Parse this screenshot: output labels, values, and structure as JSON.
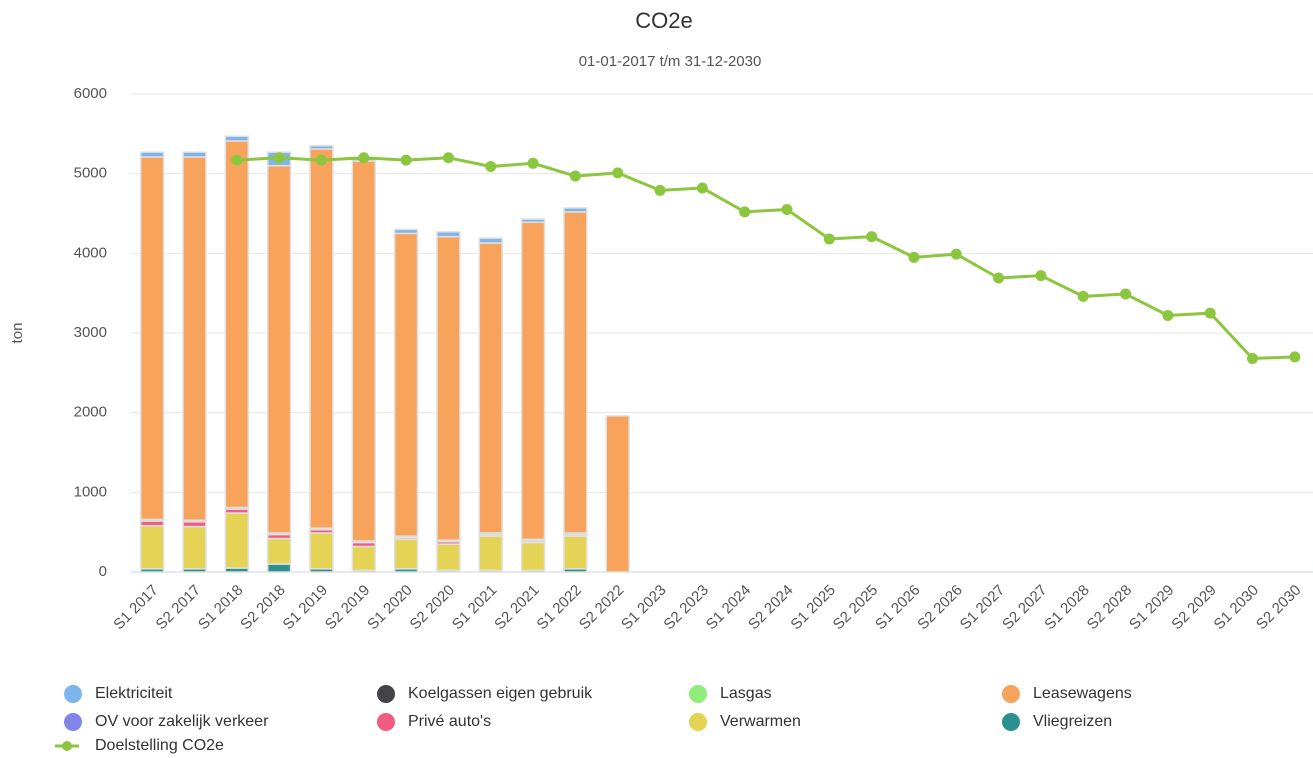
{
  "chart_data": {
    "type": "bar",
    "title": "CO2e",
    "subtitle": "01-01-2017 t/m 31-12-2030",
    "y_label": "ton",
    "categories": [
      "S1 2017",
      "S2 2017",
      "S1 2018",
      "S2 2018",
      "S1 2019",
      "S2 2019",
      "S1 2020",
      "S2 2020",
      "S1 2021",
      "S2 2021",
      "S1 2022",
      "S2 2022",
      "S1 2023",
      "S2 2023",
      "S1 2024",
      "S2 2024",
      "S1 2025",
      "S2 2025",
      "S1 2026",
      "S2 2026",
      "S1 2027",
      "S2 2027",
      "S1 2028",
      "S2 2028",
      "S1 2029",
      "S2 2029",
      "S1 2030",
      "S2 2030"
    ],
    "stacked": true,
    "series": [
      {
        "name": "Elektriciteit",
        "color": "#7cb5ec",
        "values": [
          60,
          60,
          60,
          170,
          40,
          40,
          50,
          60,
          60,
          40,
          50,
          0,
          null,
          null,
          null,
          null,
          null,
          null,
          null,
          null,
          null,
          null,
          null,
          null,
          null,
          null,
          null,
          null
        ]
      },
      {
        "name": "Koelgassen eigen gebruik",
        "color": "#434348",
        "values": [
          0,
          0,
          0,
          0,
          0,
          0,
          0,
          0,
          0,
          0,
          0,
          0,
          null,
          null,
          null,
          null,
          null,
          null,
          null,
          null,
          null,
          null,
          null,
          null,
          null,
          null,
          null,
          null
        ]
      },
      {
        "name": "Lasgas",
        "color": "#90ed7d",
        "values": [
          0,
          0,
          0,
          0,
          0,
          0,
          0,
          0,
          0,
          0,
          0,
          0,
          null,
          null,
          null,
          null,
          null,
          null,
          null,
          null,
          null,
          null,
          null,
          null,
          null,
          null,
          null,
          null
        ]
      },
      {
        "name": "Leasewagens",
        "color": "#f7a35c",
        "values": [
          4550,
          4560,
          4600,
          4610,
          4760,
          4770,
          3800,
          3810,
          3640,
          3980,
          4030,
          1960,
          null,
          null,
          null,
          null,
          null,
          null,
          null,
          null,
          null,
          null,
          null,
          null,
          null,
          null,
          null,
          null
        ]
      },
      {
        "name": "OV voor zakelijk verkeer",
        "color": "#8085e9",
        "values": [
          20,
          20,
          20,
          20,
          20,
          20,
          20,
          20,
          20,
          20,
          20,
          0,
          null,
          null,
          null,
          null,
          null,
          null,
          null,
          null,
          null,
          null,
          null,
          null,
          null,
          null,
          null,
          null
        ]
      },
      {
        "name": "Privé auto's",
        "color": "#f15c80",
        "values": [
          60,
          60,
          50,
          50,
          40,
          50,
          20,
          30,
          20,
          20,
          20,
          0,
          null,
          null,
          null,
          null,
          null,
          null,
          null,
          null,
          null,
          null,
          null,
          null,
          null,
          null,
          null,
          null
        ]
      },
      {
        "name": "Verwarmen",
        "color": "#e4d354",
        "values": [
          540,
          530,
          690,
          320,
          450,
          300,
          370,
          330,
          430,
          350,
          410,
          0,
          null,
          null,
          null,
          null,
          null,
          null,
          null,
          null,
          null,
          null,
          null,
          null,
          null,
          null,
          null,
          null
        ]
      },
      {
        "name": "Vliegreizen",
        "color": "#2b908f",
        "values": [
          40,
          40,
          50,
          100,
          40,
          20,
          40,
          20,
          20,
          20,
          40,
          0,
          null,
          null,
          null,
          null,
          null,
          null,
          null,
          null,
          null,
          null,
          null,
          null,
          null,
          null,
          null,
          null
        ]
      },
      {
        "name": "Doelstelling CO2e",
        "type": "line",
        "color": "#8cc63f",
        "values": [
          null,
          null,
          5170,
          5200,
          5170,
          5200,
          5170,
          5200,
          5090,
          5130,
          4970,
          5010,
          4790,
          4820,
          4520,
          4550,
          4180,
          4210,
          3950,
          3990,
          3690,
          3720,
          3460,
          3490,
          3220,
          3250,
          2680,
          2700
        ]
      }
    ],
    "ylim": [
      0,
      6000
    ],
    "yticks": [
      0,
      1000,
      2000,
      3000,
      4000,
      5000,
      6000
    ],
    "grid": true
  }
}
